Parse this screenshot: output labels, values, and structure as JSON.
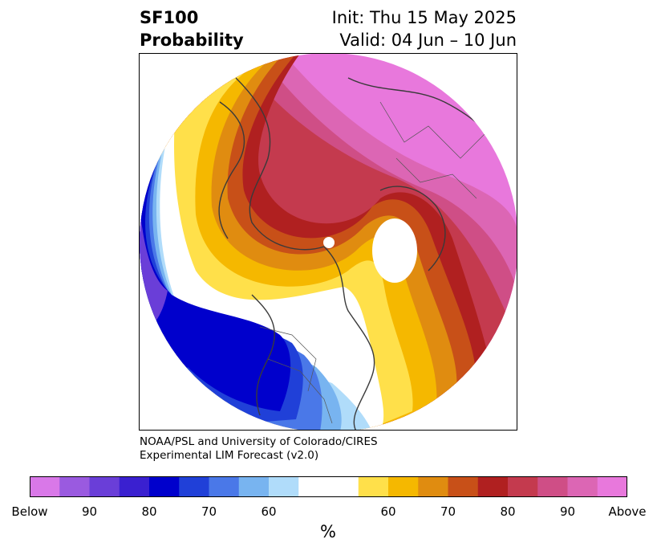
{
  "header": {
    "title_line1": "SF100",
    "title_line2": "Probability",
    "init_label": "Init: Thu 15 May 2025",
    "valid_label": "Valid: 04 Jun – 10 Jun"
  },
  "credit": {
    "line1": "NOAA/PSL and University of Colorado/CIRES",
    "line2": "Experimental LIM Forecast (v2.0)"
  },
  "colorbar": {
    "unit": "%",
    "colors": [
      "#d978e8",
      "#9a5ae0",
      "#6a3ed8",
      "#3a20d0",
      "#0000cc",
      "#2040d8",
      "#4a78e8",
      "#78b4f0",
      "#b0dcfa",
      "#ffffff",
      "#ffffff",
      "#ffe04a",
      "#f5b800",
      "#e08c10",
      "#c85018",
      "#b02020",
      "#c43a4e",
      "#cf4e86",
      "#dc66b4",
      "#e878dc"
    ],
    "tick_labels": [
      "Below",
      "90",
      "80",
      "70",
      "60",
      "60",
      "70",
      "80",
      "90",
      "Above"
    ]
  },
  "legend_colors": {
    "below_strong": "#0000cc",
    "below_light": "#b0dcfa",
    "above_yellow": "#ffe04a",
    "above_red": "#b02020",
    "above_pink": "#e878dc"
  }
}
